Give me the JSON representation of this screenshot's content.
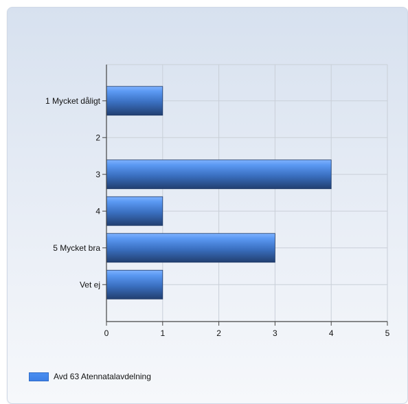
{
  "chart_data": {
    "type": "bar",
    "orientation": "horizontal",
    "categories": [
      "1 Mycket dåligt",
      "2",
      "3",
      "4",
      "5 Mycket bra",
      "Vet ej"
    ],
    "series": [
      {
        "name": "Avd 63 Atennatalavdelning",
        "values": [
          1,
          0,
          4,
          1,
          3,
          1
        ],
        "color": "#4a8ef0"
      }
    ],
    "xlim": [
      0,
      5
    ],
    "xticks": [
      "0",
      "1",
      "2",
      "3",
      "4",
      "5"
    ],
    "grid": true,
    "legend_position": "bottom-left"
  }
}
